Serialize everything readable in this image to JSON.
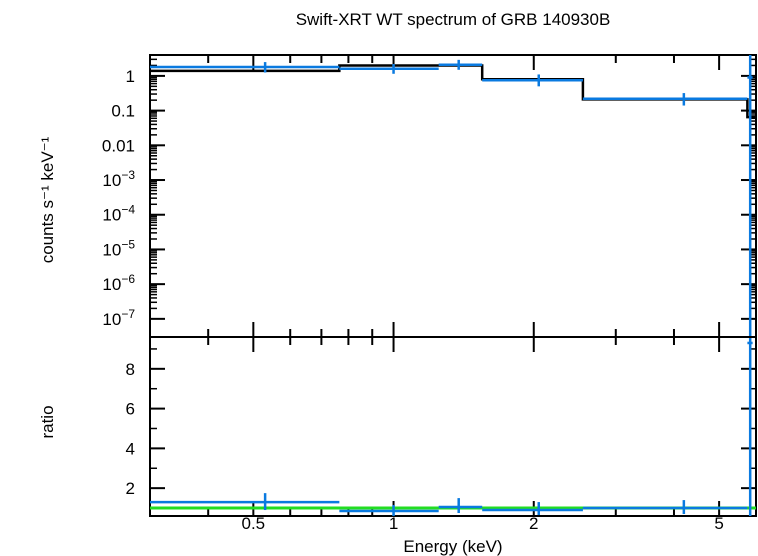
{
  "chart_data": [
    {
      "type": "line",
      "title": "Swift-XRT WT spectrum of GRB 140930B",
      "ylabel": "counts s⁻¹ keV⁻¹",
      "xscale": "log",
      "yscale": "log",
      "xlim": [
        0.3,
        6.0
      ],
      "ylim": [
        3e-08,
        4.0
      ],
      "yticks": [
        {
          "value": 1,
          "label": "1"
        },
        {
          "value": 0.1,
          "label": "0.1"
        },
        {
          "value": 0.01,
          "label": "0.01"
        },
        {
          "value": 0.001,
          "base": "10",
          "exp": "−3"
        },
        {
          "value": 0.0001,
          "base": "10",
          "exp": "−4"
        },
        {
          "value": 1e-05,
          "base": "10",
          "exp": "−5"
        },
        {
          "value": 1e-06,
          "base": "10",
          "exp": "−6"
        },
        {
          "value": 1e-07,
          "base": "10",
          "exp": "−7"
        }
      ],
      "series": [
        {
          "color": "#0a7ae0",
          "kind": "data-crosses",
          "points": [
            {
              "x": 0.53,
              "xlo": 0.3,
              "xhi": 0.765,
              "y": 1.8,
              "ylo": 1.25,
              "yhi": 2.5
            },
            {
              "x": 1.0,
              "xlo": 0.765,
              "xhi": 1.25,
              "y": 1.6,
              "ylo": 1.15,
              "yhi": 2.2
            },
            {
              "x": 1.38,
              "xlo": 1.25,
              "xhi": 1.55,
              "y": 2.1,
              "ylo": 1.5,
              "yhi": 2.9
            },
            {
              "x": 2.05,
              "xlo": 1.55,
              "xhi": 2.55,
              "y": 0.75,
              "ylo": 0.5,
              "yhi": 1.1
            },
            {
              "x": 4.2,
              "xlo": 2.55,
              "xhi": 5.75,
              "y": 0.22,
              "ylo": 0.14,
              "yhi": 0.32
            },
            {
              "x": 5.83,
              "xlo": 5.75,
              "xhi": 5.9,
              "y": 0.9,
              "ylo": 3e-08,
              "yhi": 4.0
            }
          ]
        },
        {
          "color": "#000000",
          "kind": "model-step",
          "steps": [
            {
              "x0": 0.3,
              "x1": 0.765,
              "y": 1.4
            },
            {
              "x0": 0.765,
              "x1": 1.25,
              "y": 2.0
            },
            {
              "x0": 1.25,
              "x1": 1.55,
              "y": 2.0
            },
            {
              "x0": 1.55,
              "x1": 2.55,
              "y": 0.8
            },
            {
              "x0": 2.55,
              "x1": 5.75,
              "y": 0.21
            },
            {
              "x0": 5.75,
              "x1": 6.0,
              "y": 0.065
            }
          ]
        }
      ]
    },
    {
      "type": "line",
      "xlabel": "Energy (keV)",
      "ylabel": "ratio",
      "xscale": "log",
      "xlim": [
        0.3,
        6.0
      ],
      "ylim": [
        0.6,
        9.6
      ],
      "yticks": [
        {
          "value": 2,
          "label": "2"
        },
        {
          "value": 4,
          "label": "4"
        },
        {
          "value": 6,
          "label": "6"
        },
        {
          "value": 8,
          "label": "8"
        }
      ],
      "xticks": [
        {
          "value": 0.5,
          "label": "0.5"
        },
        {
          "value": 1,
          "label": "1"
        },
        {
          "value": 2,
          "label": "2"
        },
        {
          "value": 5,
          "label": "5"
        }
      ],
      "reference_line": {
        "y": 1.0,
        "color": "#22dd22"
      },
      "series": [
        {
          "color": "#0a7ae0",
          "kind": "data-crosses",
          "points": [
            {
              "x": 0.53,
              "xlo": 0.3,
              "xhi": 0.765,
              "y": 1.3,
              "ylo": 0.9,
              "yhi": 1.75
            },
            {
              "x": 1.0,
              "xlo": 0.765,
              "xhi": 1.25,
              "y": 0.85,
              "ylo": 0.6,
              "yhi": 1.15
            },
            {
              "x": 1.38,
              "xlo": 1.25,
              "xhi": 1.55,
              "y": 1.05,
              "ylo": 0.75,
              "yhi": 1.5
            },
            {
              "x": 2.05,
              "xlo": 1.55,
              "xhi": 2.55,
              "y": 0.9,
              "ylo": 0.65,
              "yhi": 1.3
            },
            {
              "x": 4.2,
              "xlo": 2.55,
              "xhi": 5.75,
              "y": 1.0,
              "ylo": 0.7,
              "yhi": 1.4
            },
            {
              "x": 5.83,
              "xlo": 5.75,
              "xhi": 5.9,
              "y": 9.3,
              "ylo": 0.6,
              "yhi": 9.6
            }
          ]
        }
      ]
    }
  ]
}
